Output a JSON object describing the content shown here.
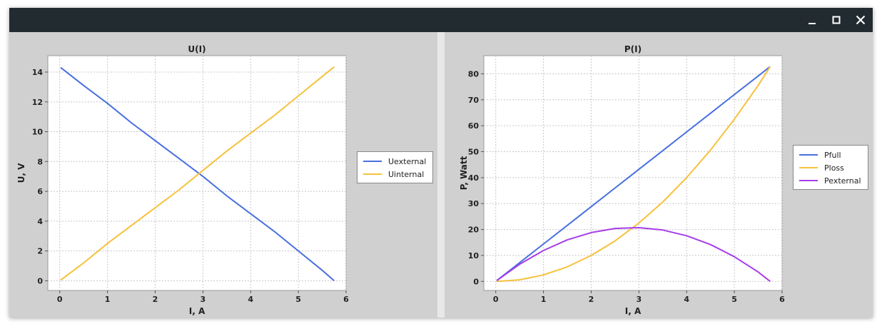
{
  "window": {
    "controls": [
      "minimize-icon",
      "maximize-icon",
      "close-icon"
    ]
  },
  "charts": [
    {
      "type": "line",
      "title": "U(I)",
      "xlabel": "I, A",
      "ylabel": "U, V",
      "xlim": [
        -0.25,
        6
      ],
      "ylim": [
        -0.65,
        15.1
      ],
      "xticks": [
        "0",
        "1",
        "2",
        "3",
        "4",
        "5",
        "6"
      ],
      "yticks": [
        "0",
        "2",
        "4",
        "6",
        "8",
        "10",
        "12",
        "14"
      ],
      "grid": true,
      "legend_position": "right",
      "series": [
        {
          "name": "Uexternal",
          "color": "#4a6fe0",
          "x": [
            0.02,
            0.5,
            1,
            1.5,
            2,
            2.5,
            3,
            3.5,
            4,
            4.5,
            5,
            5.5,
            5.75
          ],
          "y": [
            14.3,
            13.1,
            11.9,
            10.6,
            9.4,
            8.2,
            7.0,
            5.7,
            4.5,
            3.3,
            2.0,
            0.7,
            0.0
          ]
        },
        {
          "name": "Uinternal",
          "color": "#f6c13e",
          "x": [
            0.02,
            0.5,
            1,
            1.5,
            2,
            2.5,
            3,
            3.5,
            4,
            4.5,
            5,
            5.5,
            5.75
          ],
          "y": [
            0.05,
            1.2,
            2.5,
            3.7,
            4.9,
            6.1,
            7.4,
            8.7,
            9.9,
            11.1,
            12.4,
            13.7,
            14.35
          ]
        }
      ]
    },
    {
      "type": "line",
      "title": "P(I)",
      "xlabel": "I, A",
      "ylabel": "P, Watt",
      "xlim": [
        -0.25,
        6
      ],
      "ylim": [
        -3.5,
        87
      ],
      "xticks": [
        "0",
        "1",
        "2",
        "3",
        "4",
        "5",
        "6"
      ],
      "yticks": [
        "0",
        "10",
        "20",
        "30",
        "40",
        "50",
        "60",
        "70",
        "80"
      ],
      "grid": true,
      "legend_position": "right",
      "series": [
        {
          "name": "Pfull",
          "color": "#4a6fe0",
          "x": [
            0.02,
            0.5,
            1,
            1.5,
            2,
            2.5,
            3,
            3.5,
            4,
            4.5,
            5,
            5.5,
            5.75
          ],
          "y": [
            0.3,
            7.2,
            14.4,
            21.6,
            28.8,
            36.0,
            43.2,
            50.4,
            57.6,
            64.8,
            72.0,
            79.2,
            82.8
          ]
        },
        {
          "name": "Ploss",
          "color": "#f6c13e",
          "x": [
            0.02,
            0.5,
            1,
            1.5,
            2,
            2.5,
            3,
            3.5,
            4,
            4.5,
            5,
            5.5,
            5.75
          ],
          "y": [
            0.0,
            0.6,
            2.5,
            5.6,
            10.0,
            15.6,
            22.5,
            30.6,
            40.0,
            50.6,
            62.5,
            75.6,
            82.8
          ]
        },
        {
          "name": "Pexternal",
          "color": "#a63ee8",
          "x": [
            0.02,
            0.5,
            1,
            1.5,
            2,
            2.5,
            3,
            3.5,
            4,
            4.5,
            5,
            5.5,
            5.75
          ],
          "y": [
            0.3,
            6.6,
            11.9,
            16.0,
            18.8,
            20.4,
            20.7,
            19.8,
            17.6,
            14.2,
            9.5,
            3.6,
            0.0
          ]
        }
      ]
    }
  ]
}
